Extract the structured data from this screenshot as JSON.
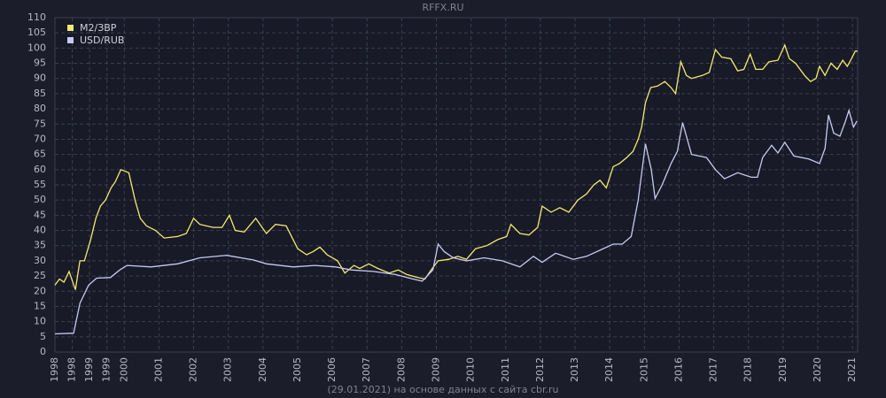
{
  "chart_data": {
    "type": "line",
    "title": "RFFX.RU",
    "footnote": "(29.01.2021) на основе данных с сайта cbr.ru",
    "legend": "upper left",
    "grid": true,
    "xlim": [
      1998,
      2021.15
    ],
    "ylim": [
      0,
      110
    ],
    "yticks": [
      0,
      5,
      10,
      15,
      20,
      25,
      30,
      35,
      40,
      45,
      50,
      55,
      60,
      65,
      70,
      75,
      80,
      85,
      90,
      95,
      100,
      105,
      110
    ],
    "xticks": [
      1998,
      {
        "value": 1998.5,
        "label": "1998"
      },
      1999,
      {
        "value": 1999.5,
        "label": "1999"
      },
      2000,
      2001,
      2002,
      2003,
      2004,
      2005,
      2006,
      2007,
      2008,
      2009,
      2010,
      2011,
      2012,
      2013,
      2014,
      2015,
      2016,
      2017,
      2018,
      2019,
      2020,
      2021
    ],
    "series": [
      {
        "name": "M2/ЗВР",
        "color": "#f3ea6e",
        "x": [
          1998.0,
          1998.13,
          1998.26,
          1998.41,
          1998.59,
          1998.72,
          1998.85,
          1999.03,
          1999.18,
          1999.31,
          1999.46,
          1999.62,
          1999.74,
          1999.9,
          2000.13,
          2000.31,
          2000.46,
          2000.64,
          2000.9,
          2001.15,
          2001.54,
          2001.79,
          2002.0,
          2002.18,
          2002.56,
          2002.82,
          2003.03,
          2003.2,
          2003.46,
          2003.79,
          2004.1,
          2004.36,
          2004.67,
          2005.0,
          2005.26,
          2005.44,
          2005.64,
          2005.85,
          2006.15,
          2006.36,
          2006.62,
          2006.79,
          2007.05,
          2007.31,
          2007.64,
          2007.9,
          2008.15,
          2008.46,
          2008.67,
          2008.85,
          2009.05,
          2009.36,
          2009.62,
          2009.87,
          2010.13,
          2010.46,
          2010.77,
          2011.03,
          2011.15,
          2011.41,
          2011.67,
          2011.92,
          2012.05,
          2012.31,
          2012.56,
          2012.82,
          2013.08,
          2013.33,
          2013.54,
          2013.72,
          2013.9,
          2014.1,
          2014.28,
          2014.49,
          2014.67,
          2014.82,
          2014.92,
          2015.03,
          2015.18,
          2015.38,
          2015.59,
          2015.77,
          2015.9,
          2016.05,
          2016.21,
          2016.36,
          2016.67,
          2016.87,
          2017.05,
          2017.23,
          2017.49,
          2017.69,
          2017.87,
          2018.05,
          2018.21,
          2018.41,
          2018.59,
          2018.85,
          2019.05,
          2019.18,
          2019.36,
          2019.62,
          2019.79,
          2019.95,
          2020.05,
          2020.21,
          2020.38,
          2020.56,
          2020.72,
          2020.85,
          2020.97,
          2021.08,
          2021.15
        ],
        "values": [
          22,
          24,
          23,
          26.5,
          20.5,
          30,
          30,
          37,
          44,
          48,
          50,
          54,
          56,
          60,
          59,
          50,
          44,
          41.5,
          40,
          37.5,
          38,
          39,
          44,
          42,
          41,
          41,
          45,
          40,
          39.5,
          44,
          39,
          42,
          41.5,
          34,
          32,
          33,
          34.5,
          32,
          30,
          26,
          28.5,
          27.5,
          29,
          27.5,
          26,
          27,
          25.5,
          24.5,
          24,
          27,
          30,
          30.5,
          31.5,
          30.5,
          34,
          35,
          37,
          38,
          42,
          39,
          38.5,
          41,
          48,
          46,
          47.5,
          46,
          50,
          52,
          55,
          56.5,
          54,
          61,
          62,
          64,
          66,
          70,
          74,
          82,
          87,
          87.5,
          89,
          87,
          85,
          95.5,
          91,
          90,
          91,
          92,
          99.5,
          97,
          96.5,
          92.5,
          93,
          98,
          93,
          93,
          95.5,
          96,
          101,
          96.5,
          95,
          91,
          89,
          90,
          94,
          91,
          95,
          93,
          96,
          94,
          96.5,
          99,
          99
        ]
      },
      {
        "name": "USD/RUB",
        "color": "#c9c9f2",
        "x": [
          1998.0,
          1998.54,
          1998.72,
          1998.97,
          1999.2,
          1999.6,
          1999.87,
          2000.08,
          2000.77,
          2001.54,
          2002.18,
          2002.95,
          2003.72,
          2004.1,
          2004.87,
          2005.5,
          2006.1,
          2006.54,
          2007.18,
          2007.82,
          2008.33,
          2008.59,
          2008.9,
          2009.05,
          2009.23,
          2009.49,
          2009.87,
          2010.38,
          2010.9,
          2011.41,
          2011.8,
          2012.05,
          2012.44,
          2012.95,
          2013.33,
          2013.72,
          2014.1,
          2014.36,
          2014.62,
          2014.82,
          2015.03,
          2015.2,
          2015.31,
          2015.51,
          2015.77,
          2015.95,
          2016.1,
          2016.36,
          2016.79,
          2017.05,
          2017.31,
          2017.69,
          2018.08,
          2018.26,
          2018.41,
          2018.67,
          2018.85,
          2019.05,
          2019.31,
          2019.74,
          2020.05,
          2020.21,
          2020.31,
          2020.46,
          2020.64,
          2020.77,
          2020.9,
          2021.03,
          2021.13
        ],
        "values": [
          5.96,
          6.2,
          16,
          22,
          24.3,
          24.5,
          27,
          28.5,
          28,
          29,
          31,
          31.8,
          30.3,
          29,
          28,
          28.5,
          28,
          27,
          26.5,
          25.5,
          24,
          23.3,
          27,
          35.5,
          33,
          31,
          30,
          31,
          30,
          28,
          31.5,
          29.5,
          32.5,
          30.5,
          31.5,
          33.5,
          35.5,
          35.5,
          38,
          50,
          68.5,
          60,
          50.5,
          55,
          62,
          66,
          75.5,
          65,
          64,
          60,
          57,
          59,
          57.5,
          57.5,
          64,
          68,
          65.5,
          69,
          64.5,
          63.5,
          62,
          67,
          78,
          72,
          71,
          75,
          79.5,
          74,
          76
        ]
      }
    ]
  }
}
